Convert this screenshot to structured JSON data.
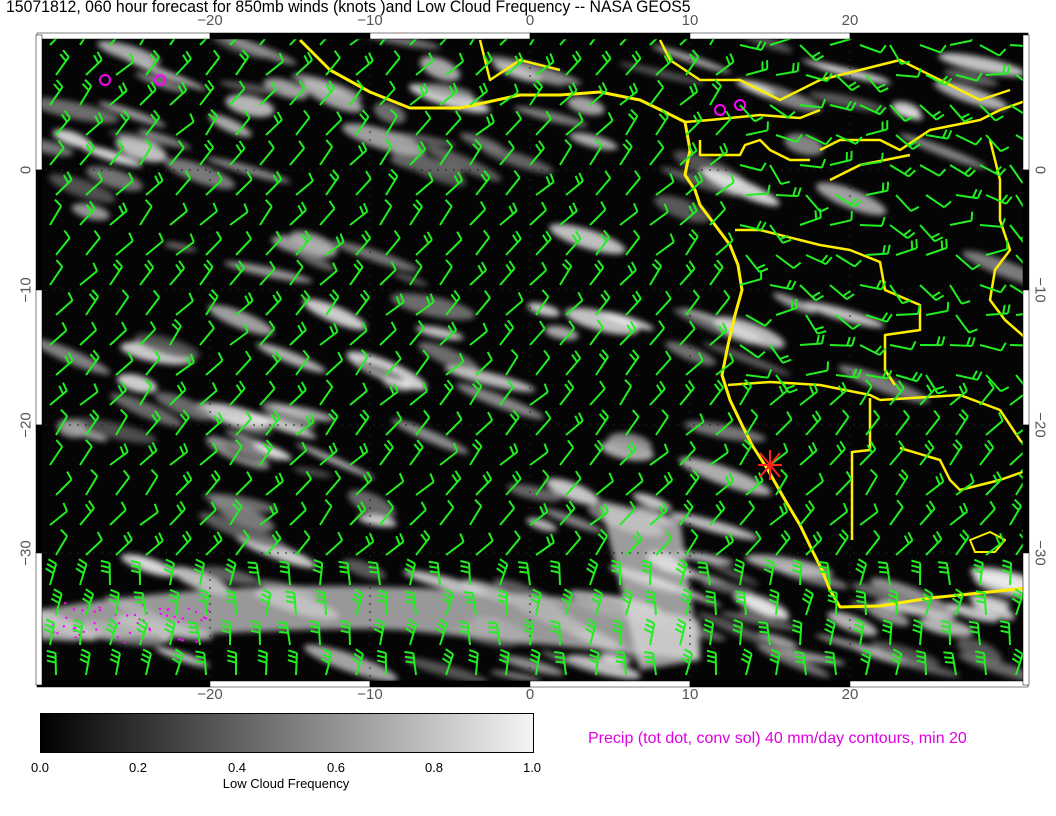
{
  "title": "15071812, 060 hour forecast for 850mb winds (knots )and Low Cloud Frequency -- NASA GEOS5",
  "map": {
    "lon_ticks": [
      "−20",
      "−10",
      "0",
      "10",
      "20"
    ],
    "lat_ticks_left": [
      "0",
      "−10",
      "−20",
      "−30"
    ],
    "lat_ticks_right": [
      "0",
      "−10",
      "−20",
      "−30"
    ],
    "lon_range": [
      -31,
      31
    ],
    "lat_range": [
      8.5,
      -39
    ],
    "colors": {
      "wind_barbs": "#22ee22",
      "coastlines": "#ffee00",
      "precip_contours": "#ff00ff",
      "marker": "#ff2020",
      "background": "#000000"
    },
    "marker_icon": "red-star-marker"
  },
  "colorbar": {
    "ticks": [
      "0.0",
      "0.2",
      "0.4",
      "0.6",
      "0.8",
      "1.0"
    ],
    "label": "Low Cloud Frequency",
    "range": [
      0,
      1
    ]
  },
  "legend": {
    "precip": "Precip (tot dot, conv sol) 40 mm/day contours, min 20"
  }
}
